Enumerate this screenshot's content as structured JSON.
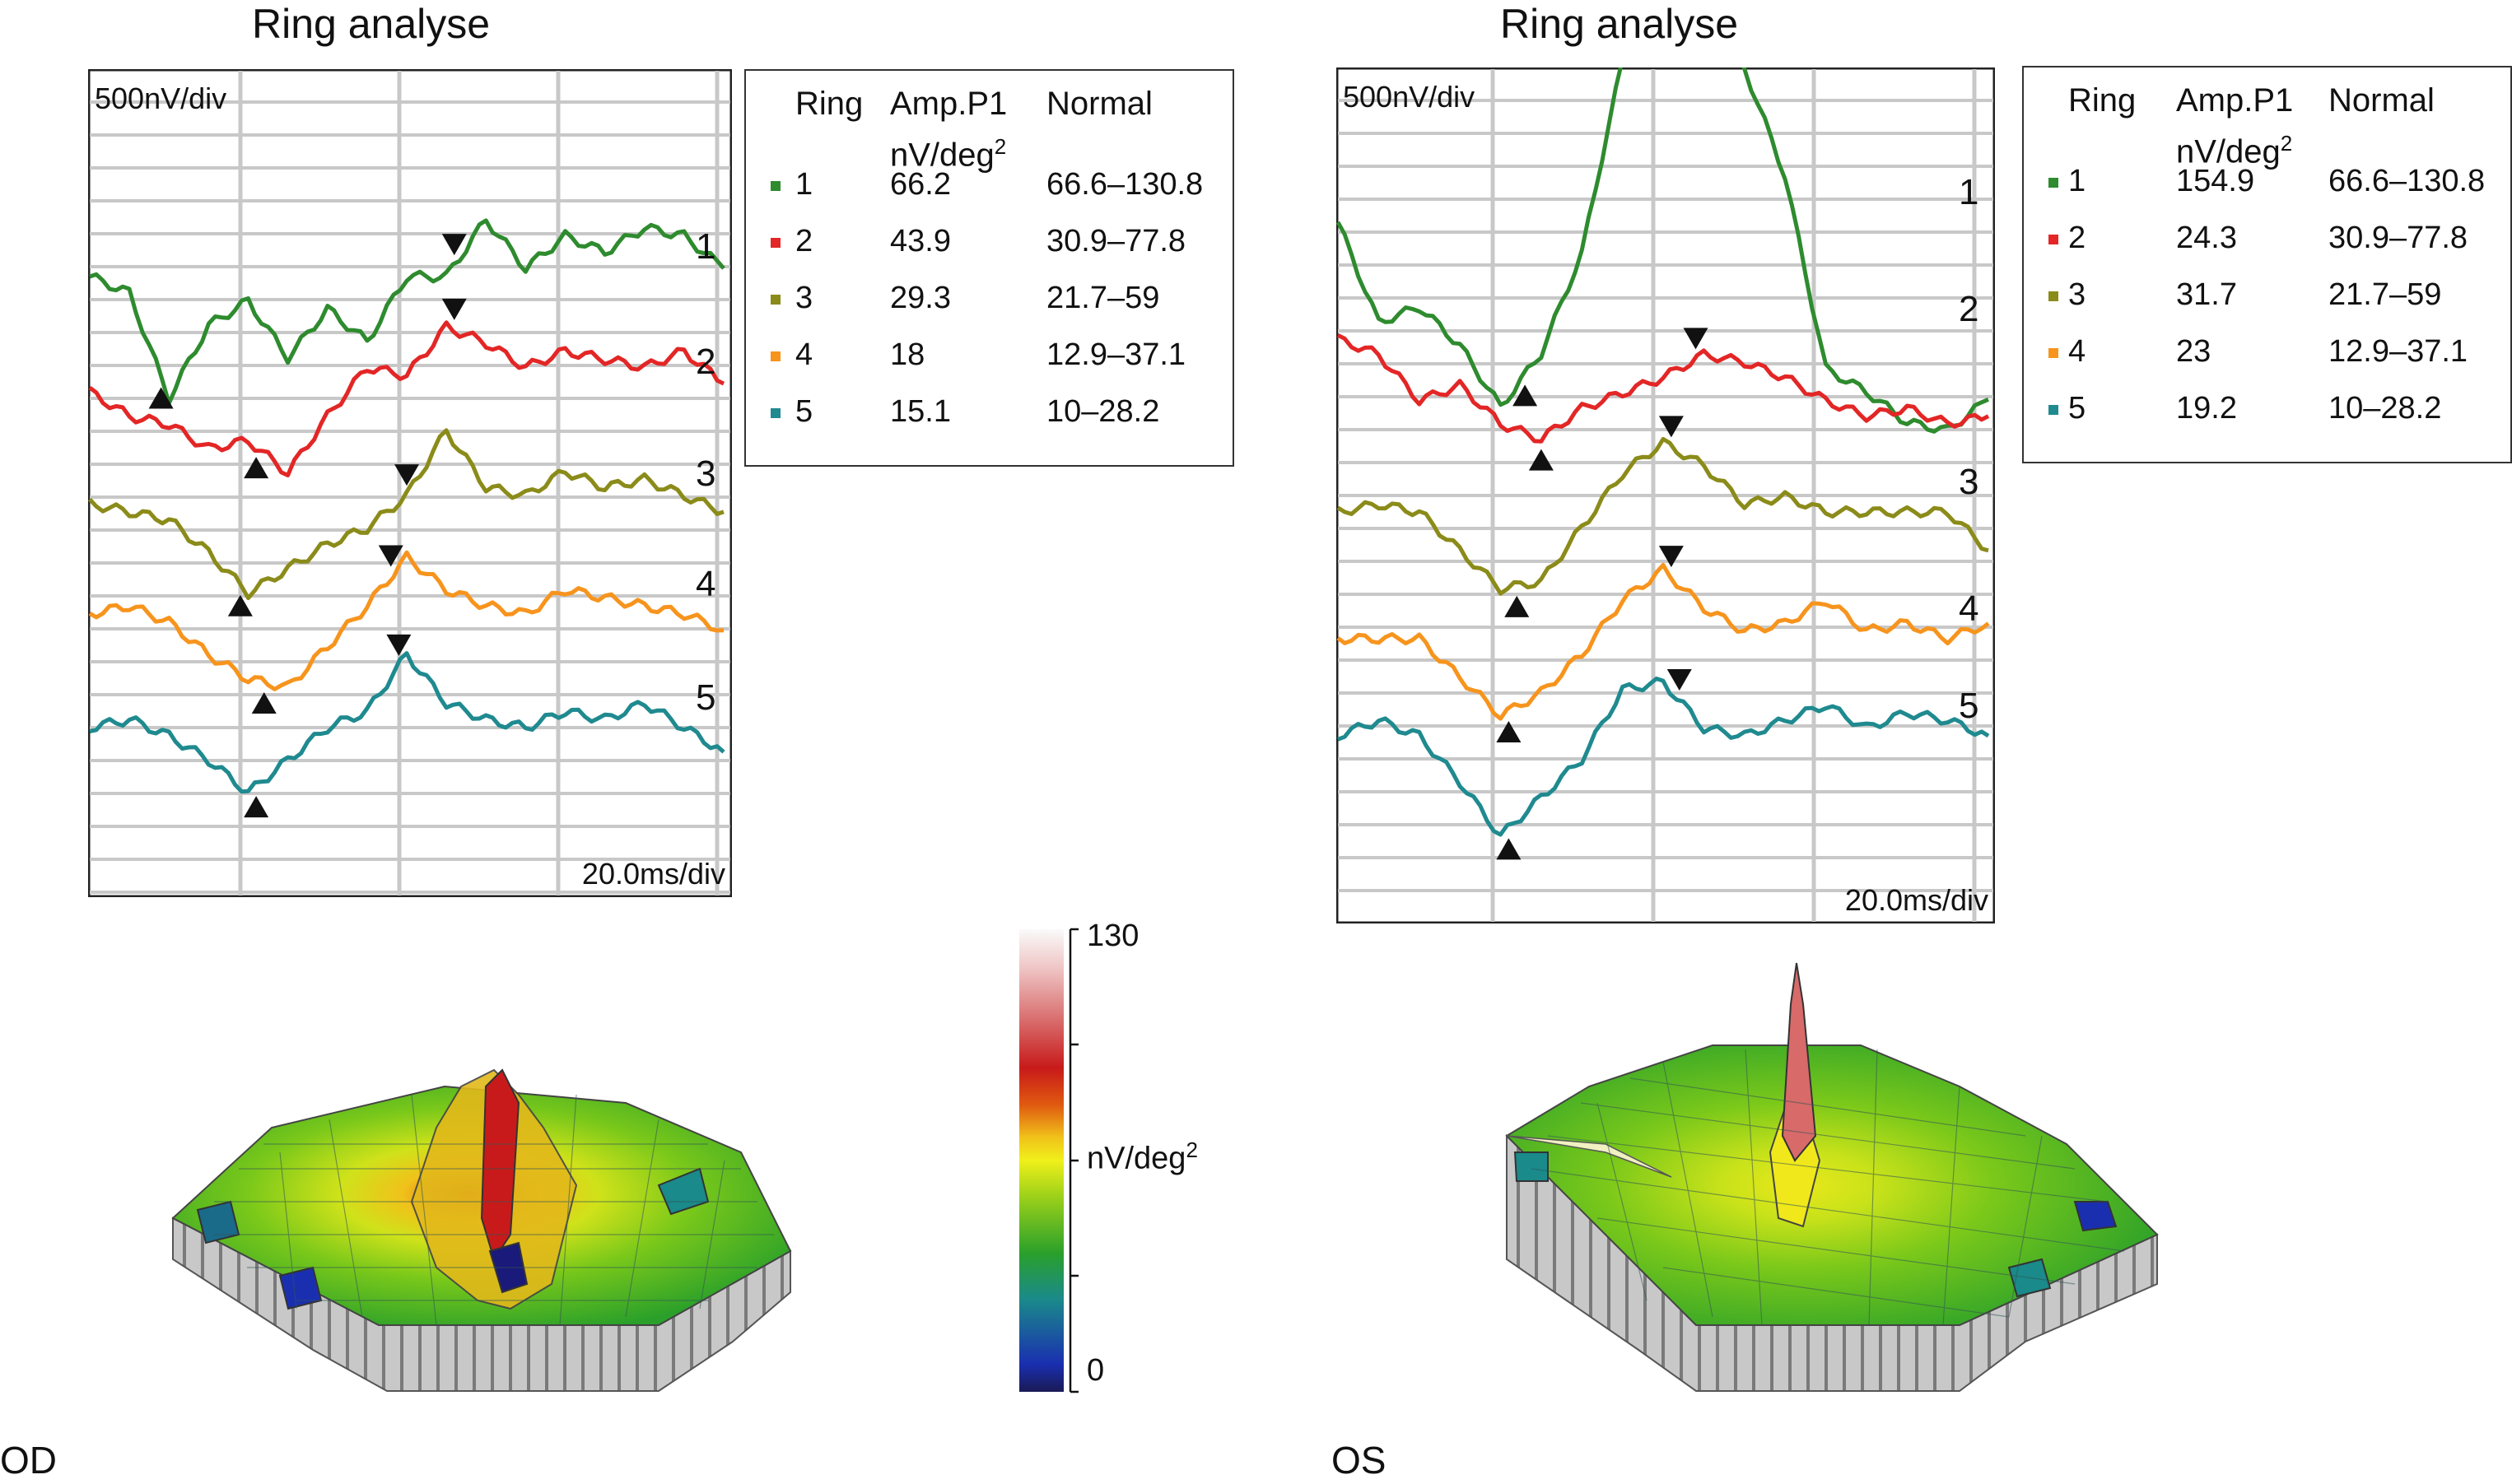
{
  "panels": [
    {
      "id": "OD",
      "eye_label": "OD",
      "title": "Ring analyse",
      "ylabel_scale": "500nV/div",
      "xlabel_scale": "20.0ms/div",
      "legend": {
        "headers": {
          "ring": "Ring",
          "amp_line1": "Amp.P1",
          "amp_line2": "nV/deg",
          "amp_sup": "2",
          "normal": "Normal"
        },
        "rows": [
          {
            "ring": "1",
            "amp": "66.2",
            "normal": "66.6–130.8",
            "color": "#2e8b2e"
          },
          {
            "ring": "2",
            "amp": "43.9",
            "normal": "30.9–77.8",
            "color": "#e32626"
          },
          {
            "ring": "3",
            "amp": "29.3",
            "normal": "21.7–59",
            "color": "#8b8b1a"
          },
          {
            "ring": "4",
            "amp": "18",
            "normal": "12.9–37.1",
            "color": "#f7941d"
          },
          {
            "ring": "5",
            "amp": "15.1",
            "normal": "10–28.2",
            "color": "#1f8a8f"
          }
        ]
      }
    },
    {
      "id": "OS",
      "eye_label": "OS",
      "title": "Ring analyse",
      "ylabel_scale": "500nV/div",
      "xlabel_scale": "20.0ms/div",
      "legend": {
        "headers": {
          "ring": "Ring",
          "amp_line1": "Amp.P1",
          "amp_line2": "nV/deg",
          "amp_sup": "2",
          "normal": "Normal"
        },
        "rows": [
          {
            "ring": "1",
            "amp": "154.9",
            "normal": "66.6–130.8",
            "color": "#2e8b2e"
          },
          {
            "ring": "2",
            "amp": "24.3",
            "normal": "30.9–77.8",
            "color": "#e32626"
          },
          {
            "ring": "3",
            "amp": "31.7",
            "normal": "21.7–59",
            "color": "#8b8b1a"
          },
          {
            "ring": "4",
            "amp": "23",
            "normal": "12.9–37.1",
            "color": "#f7941d"
          },
          {
            "ring": "5",
            "amp": "19.2",
            "normal": "10–28.2",
            "color": "#1f8a8f"
          }
        ]
      }
    }
  ],
  "colorbar": {
    "max_label": "130",
    "min_label": "0",
    "unit_label": "nV/deg",
    "unit_sup": "2",
    "range": [
      0,
      130
    ],
    "stops": [
      "#1a1a7a",
      "#1a2fb0",
      "#1a8a8a",
      "#2aa02a",
      "#7ac81a",
      "#d8e81a",
      "#f0c21a",
      "#e05a10",
      "#c81a1a",
      "#d86a6a",
      "#f0c8c8",
      "#fafafa"
    ]
  },
  "chart_data": [
    {
      "type": "line",
      "title": "Ring analyse",
      "panel": "OD",
      "x_unit": "20.0ms/div",
      "y_unit": "500nV/div",
      "x": [
        0,
        5,
        10,
        15,
        20,
        25,
        30,
        35,
        40,
        45,
        50,
        55,
        60,
        65,
        70,
        75,
        80
      ],
      "series": [
        {
          "name": "1",
          "color": "#2e8b2e",
          "values": [
            0,
            -0.2,
            -1.5,
            -0.6,
            -0.3,
            -1.0,
            -0.4,
            -0.8,
            0.0,
            0.0,
            0.7,
            0.1,
            0.5,
            0.3,
            0.6,
            0.5,
            0.1
          ],
          "trough_x": 9,
          "peak_x": 46
        },
        {
          "name": "2",
          "color": "#e32626",
          "values": [
            0,
            -0.3,
            -0.4,
            -0.7,
            -0.6,
            -1.0,
            -0.3,
            0.3,
            0.2,
            0.8,
            0.6,
            0.3,
            0.5,
            0.4,
            0.3,
            0.5,
            0.1
          ],
          "trough_x": 21,
          "peak_x": 46
        },
        {
          "name": "3",
          "color": "#8b8b1a",
          "values": [
            0,
            -0.1,
            -0.2,
            -0.6,
            -1.1,
            -0.8,
            -0.5,
            -0.3,
            0.1,
            0.9,
            0.2,
            0.1,
            0.4,
            0.2,
            0.3,
            0.1,
            -0.1
          ],
          "trough_x": 19,
          "peak_x": 40
        },
        {
          "name": "4",
          "color": "#f7941d",
          "values": [
            0,
            0.1,
            -0.1,
            -0.5,
            -0.8,
            -0.9,
            -0.4,
            0.1,
            0.7,
            0.3,
            0.1,
            0.0,
            0.3,
            0.2,
            0.1,
            0.0,
            -0.2
          ],
          "trough_x": 22,
          "peak_x": 38
        },
        {
          "name": "5",
          "color": "#1f8a8f",
          "values": [
            0,
            0.1,
            -0.1,
            -0.4,
            -0.8,
            -0.4,
            0.0,
            0.2,
            0.9,
            0.3,
            0.1,
            0.0,
            0.2,
            0.1,
            0.3,
            0.0,
            -0.3
          ],
          "trough_x": 21,
          "peak_x": 39
        }
      ]
    },
    {
      "type": "line",
      "title": "Ring analyse",
      "panel": "OS",
      "x_unit": "20.0ms/div",
      "y_unit": "500nV/div",
      "x": [
        0,
        5,
        10,
        15,
        20,
        25,
        30,
        35,
        40,
        45,
        50,
        55,
        60,
        65,
        70,
        75,
        80
      ],
      "series": [
        {
          "name": "1",
          "color": "#2e8b2e",
          "values": [
            0,
            -1.3,
            -1.1,
            -1.6,
            -2.4,
            -1.7,
            -0.4,
            2.1,
            3.2,
            2.9,
            2.0,
            0.6,
            -1.9,
            -2.2,
            -2.6,
            -2.7,
            -2.3
          ],
          "trough_x": 23,
          "peak_x": 43
        },
        {
          "name": "2",
          "color": "#e32626",
          "values": [
            0,
            -0.2,
            -0.8,
            -0.6,
            -1.1,
            -1.3,
            -0.9,
            -0.7,
            -0.5,
            -0.2,
            -0.3,
            -0.5,
            -0.8,
            -1.0,
            -0.9,
            -1.1,
            -1.0
          ],
          "trough_x": 25,
          "peak_x": 44
        },
        {
          "name": "3",
          "color": "#8b8b1a",
          "values": [
            0,
            0.1,
            0.0,
            -0.5,
            -1.0,
            -0.9,
            -0.2,
            0.5,
            0.9,
            0.6,
            0.1,
            0.2,
            0.0,
            0.0,
            0.0,
            0.0,
            -0.5
          ],
          "trough_x": 22,
          "peak_x": 41
        },
        {
          "name": "4",
          "color": "#f7941d",
          "values": [
            0,
            0.0,
            0.0,
            -0.5,
            -1.0,
            -0.7,
            -0.2,
            0.5,
            0.9,
            0.4,
            0.1,
            0.2,
            0.5,
            0.1,
            0.2,
            0.0,
            0.2
          ],
          "trough_x": 21,
          "peak_x": 41
        },
        {
          "name": "5",
          "color": "#1f8a8f",
          "values": [
            0,
            0.2,
            0.0,
            -0.6,
            -1.3,
            -0.8,
            -0.3,
            0.6,
            0.7,
            0.1,
            0.0,
            0.2,
            0.4,
            0.1,
            0.3,
            0.2,
            0.0
          ],
          "trough_x": 21,
          "peak_x": 42
        }
      ]
    }
  ]
}
